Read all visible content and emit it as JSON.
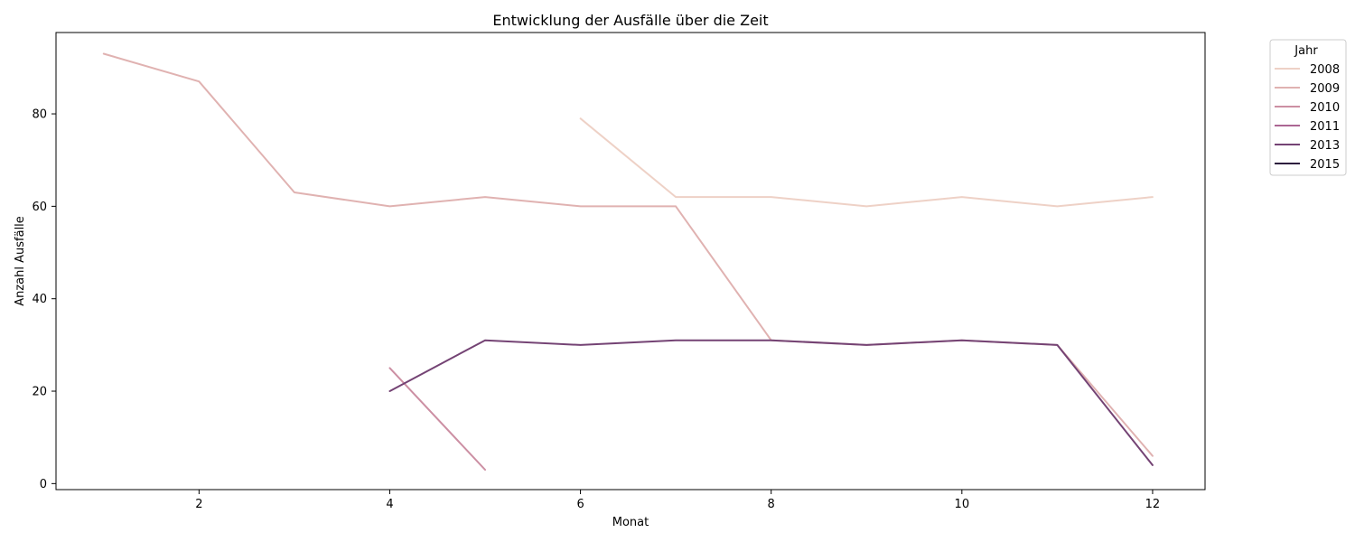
{
  "chart_data": {
    "type": "line",
    "title": "Entwicklung der Ausfälle über die Zeit",
    "xlabel": "Monat",
    "ylabel": "Anzahl Ausfälle",
    "xlim": [
      0.5,
      12.55
    ],
    "ylim": [
      -1.3,
      97.6
    ],
    "xticks": [
      2,
      4,
      6,
      8,
      10,
      12
    ],
    "yticks": [
      0,
      20,
      40,
      60,
      80
    ],
    "grid": false,
    "legend": {
      "title": "Jahr",
      "placement": "outside-top-right"
    },
    "series": [
      {
        "name": "2008",
        "color": "#eed1c6",
        "x": [
          6,
          7,
          8,
          9,
          10,
          11,
          12
        ],
        "y": [
          79,
          62,
          62,
          60,
          62,
          60,
          62
        ]
      },
      {
        "name": "2009",
        "color": "#e0b2b1",
        "x": [
          1,
          2,
          3,
          4,
          5,
          6,
          7,
          8,
          9,
          10,
          11,
          12
        ],
        "y": [
          93,
          87,
          63,
          60,
          62,
          60,
          60,
          31,
          30,
          31,
          30,
          6
        ]
      },
      {
        "name": "2010",
        "color": "#cc8fa3",
        "x": [
          4,
          5
        ],
        "y": [
          25,
          3
        ]
      },
      {
        "name": "2011",
        "color": "#ac6693",
        "x": [],
        "y": []
      },
      {
        "name": "2013",
        "color": "#744374",
        "x": [
          4,
          5,
          6,
          7,
          8,
          9,
          10,
          11,
          12
        ],
        "y": [
          20,
          31,
          30,
          31,
          31,
          30,
          31,
          30,
          4
        ]
      },
      {
        "name": "2015",
        "color": "#2d1e3e",
        "x": [],
        "y": []
      }
    ]
  }
}
